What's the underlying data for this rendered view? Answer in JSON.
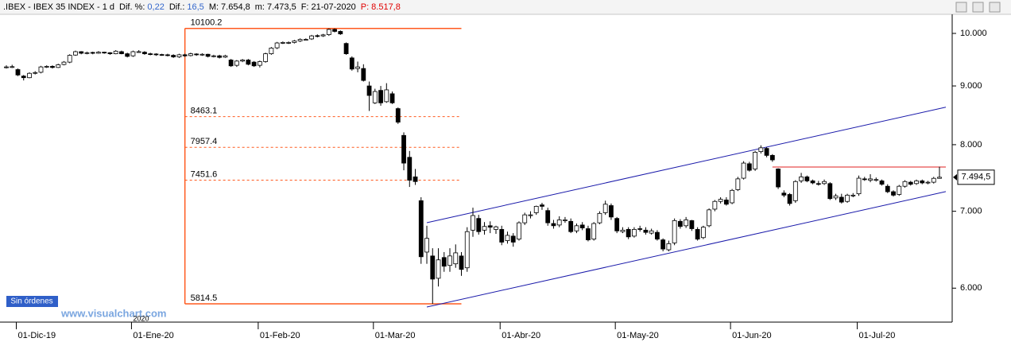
{
  "header": {
    "title": ".IBEX - IBEX 35 INDEX - 1 d",
    "fields": [
      {
        "label": "Dif. %:",
        "value": "0,22",
        "color": "#3366cc"
      },
      {
        "label": "Dif.:",
        "value": "16,5",
        "color": "#3366cc"
      },
      {
        "label": "M:",
        "value": "7.654,8",
        "color": "#000000"
      },
      {
        "label": "m:",
        "value": "7.473,5",
        "color": "#000000"
      },
      {
        "label": "F:",
        "value": "21-07-2020",
        "color": "#000000"
      },
      {
        "label": "P:",
        "value": "8.517,8",
        "color": "#e00000"
      }
    ]
  },
  "chart_data": {
    "type": "candlestick",
    "dates": [
      "2019-11-28",
      "2019-11-29",
      "2019-12-02",
      "2019-12-03",
      "2019-12-04",
      "2019-12-05",
      "2019-12-06",
      "2019-12-09",
      "2019-12-10",
      "2019-12-11",
      "2019-12-12",
      "2019-12-13",
      "2019-12-16",
      "2019-12-17",
      "2019-12-18",
      "2019-12-19",
      "2019-12-20",
      "2019-12-23",
      "2019-12-24",
      "2019-12-27",
      "2019-12-30",
      "2019-12-31",
      "2020-01-02",
      "2020-01-03",
      "2020-01-06",
      "2020-01-07",
      "2020-01-08",
      "2020-01-09",
      "2020-01-10",
      "2020-01-13",
      "2020-01-14",
      "2020-01-15",
      "2020-01-16",
      "2020-01-17",
      "2020-01-20",
      "2020-01-21",
      "2020-01-22",
      "2020-01-23",
      "2020-01-24",
      "2020-01-27",
      "2020-01-28",
      "2020-01-29",
      "2020-01-30",
      "2020-01-31",
      "2020-02-03",
      "2020-02-04",
      "2020-02-05",
      "2020-02-06",
      "2020-02-07",
      "2020-02-10",
      "2020-02-11",
      "2020-02-12",
      "2020-02-13",
      "2020-02-14",
      "2020-02-17",
      "2020-02-18",
      "2020-02-19",
      "2020-02-20",
      "2020-02-21",
      "2020-02-24",
      "2020-02-25",
      "2020-02-26",
      "2020-02-27",
      "2020-02-28",
      "2020-03-02",
      "2020-03-03",
      "2020-03-04",
      "2020-03-05",
      "2020-03-06",
      "2020-03-09",
      "2020-03-10",
      "2020-03-11",
      "2020-03-12",
      "2020-03-13",
      "2020-03-16",
      "2020-03-17",
      "2020-03-18",
      "2020-03-19",
      "2020-03-20",
      "2020-03-23",
      "2020-03-24",
      "2020-03-25",
      "2020-03-26",
      "2020-03-27",
      "2020-03-30",
      "2020-03-31",
      "2020-04-01",
      "2020-04-02",
      "2020-04-03",
      "2020-04-06",
      "2020-04-07",
      "2020-04-08",
      "2020-04-09",
      "2020-04-14",
      "2020-04-15",
      "2020-04-16",
      "2020-04-17",
      "2020-04-20",
      "2020-04-21",
      "2020-04-22",
      "2020-04-23",
      "2020-04-24",
      "2020-04-27",
      "2020-04-28",
      "2020-04-29",
      "2020-04-30",
      "2020-05-04",
      "2020-05-05",
      "2020-05-06",
      "2020-05-07",
      "2020-05-08",
      "2020-05-11",
      "2020-05-12",
      "2020-05-13",
      "2020-05-14",
      "2020-05-15",
      "2020-05-18",
      "2020-05-19",
      "2020-05-20",
      "2020-05-21",
      "2020-05-22",
      "2020-05-25",
      "2020-05-26",
      "2020-05-27",
      "2020-05-28",
      "2020-05-29",
      "2020-06-01",
      "2020-06-02",
      "2020-06-03",
      "2020-06-04",
      "2020-06-05",
      "2020-06-08",
      "2020-06-09",
      "2020-06-10",
      "2020-06-11",
      "2020-06-12",
      "2020-06-15",
      "2020-06-16",
      "2020-06-17",
      "2020-06-18",
      "2020-06-19",
      "2020-06-22",
      "2020-06-23",
      "2020-06-24",
      "2020-06-25",
      "2020-06-26",
      "2020-06-29",
      "2020-06-30",
      "2020-07-01",
      "2020-07-02",
      "2020-07-03",
      "2020-07-06",
      "2020-07-07",
      "2020-07-08",
      "2020-07-09",
      "2020-07-10",
      "2020-07-13",
      "2020-07-14",
      "2020-07-15",
      "2020-07-16",
      "2020-07-17",
      "2020-07-20",
      "2020-07-21"
    ],
    "open": [
      9340,
      9345,
      9300,
      9180,
      9150,
      9235,
      9250,
      9345,
      9360,
      9340,
      9395,
      9440,
      9575,
      9640,
      9605,
      9625,
      9610,
      9630,
      9620,
      9600,
      9640,
      9600,
      9560,
      9640,
      9630,
      9600,
      9595,
      9585,
      9580,
      9570,
      9540,
      9580,
      9565,
      9595,
      9580,
      9590,
      9550,
      9560,
      9535,
      9480,
      9380,
      9460,
      9480,
      9440,
      9380,
      9450,
      9600,
      9715,
      9815,
      9815,
      9820,
      9850,
      9880,
      9890,
      9955,
      9950,
      9975,
      10080,
      10040,
      9800,
      9520,
      9320,
      9320,
      9000,
      8700,
      8920,
      8720,
      8860,
      8600,
      8150,
      7800,
      7500,
      7150,
      6450,
      6400,
      6120,
      6380,
      6280,
      6300,
      6400,
      6250,
      6740,
      6900,
      6740,
      6800,
      6750,
      6750,
      6600,
      6660,
      6620,
      6840,
      6940,
      6980,
      7090,
      7010,
      6830,
      6810,
      6880,
      6860,
      6730,
      6810,
      6760,
      6620,
      6840,
      6980,
      7080,
      6900,
      6720,
      6750,
      6660,
      6760,
      6740,
      6700,
      6710,
      6610,
      6480,
      6570,
      6860,
      6800,
      6870,
      6750,
      6640,
      6800,
      7030,
      7140,
      7160,
      7120,
      7310,
      7480,
      7700,
      7620,
      7890,
      7940,
      7830,
      7620,
      7260,
      7240,
      7150,
      7440,
      7500,
      7440,
      7400,
      7400,
      7400,
      7190,
      7200,
      7140,
      7220,
      7250,
      7470,
      7450,
      7460,
      7440,
      7360,
      7280,
      7240,
      7360,
      7420,
      7400,
      7440,
      7415,
      7420,
      7478
    ],
    "high": [
      9380,
      9390,
      9320,
      9200,
      9250,
      9270,
      9370,
      9380,
      9380,
      9410,
      9460,
      9590,
      9660,
      9650,
      9640,
      9640,
      9650,
      9640,
      9630,
      9670,
      9660,
      9620,
      9660,
      9670,
      9650,
      9620,
      9610,
      9600,
      9600,
      9590,
      9600,
      9600,
      9620,
      9610,
      9610,
      9600,
      9580,
      9580,
      9580,
      9500,
      9480,
      9500,
      9500,
      9460,
      9470,
      9620,
      9730,
      9830,
      9840,
      9840,
      9870,
      9900,
      9900,
      9970,
      9980,
      9990,
      10100.2,
      10100,
      10060,
      9820,
      9550,
      9450,
      9400,
      9080,
      8950,
      9000,
      9050,
      8900,
      8620,
      8200,
      7900,
      7620,
      7200,
      6800,
      6500,
      6500,
      6450,
      6500,
      6550,
      6450,
      6780,
      7050,
      6950,
      6850,
      6860,
      6800,
      6800,
      6720,
      6700,
      6860,
      6980,
      7000,
      7080,
      7120,
      7050,
      6880,
      6930,
      6920,
      6900,
      6830,
      6850,
      6800,
      6850,
      7000,
      7150,
      7110,
      6920,
      6780,
      6780,
      6780,
      6800,
      6780,
      6760,
      6740,
      6630,
      6600,
      6900,
      6890,
      6920,
      6880,
      6780,
      6800,
      7040,
      7160,
      7200,
      7200,
      7320,
      7500,
      7740,
      7730,
      7900,
      7990,
      7960,
      7850,
      7630,
      7300,
      7260,
      7450,
      7560,
      7520,
      7460,
      7440,
      7460,
      7420,
      7250,
      7250,
      7250,
      7260,
      7520,
      7500,
      7540,
      7490,
      7460,
      7390,
      7300,
      7380,
      7450,
      7440,
      7460,
      7460,
      7440,
      7500,
      7654.8
    ],
    "low": [
      9320,
      9330,
      9180,
      9100,
      9140,
      9210,
      9230,
      9330,
      9320,
      9330,
      9380,
      9420,
      9560,
      9590,
      9590,
      9590,
      9600,
      9600,
      9580,
      9590,
      9590,
      9530,
      9540,
      9620,
      9580,
      9570,
      9560,
      9560,
      9550,
      9520,
      9520,
      9540,
      9550,
      9560,
      9560,
      9530,
      9530,
      9510,
      9520,
      9350,
      9350,
      9440,
      9380,
      9350,
      9340,
      9430,
      9580,
      9690,
      9790,
      9790,
      9800,
      9830,
      9860,
      9870,
      9920,
      9930,
      9950,
      10020,
      9970,
      9580,
      9280,
      9250,
      9080,
      8560,
      8680,
      8650,
      8700,
      8680,
      8340,
      7600,
      7350,
      7380,
      6300,
      6300,
      5814.5,
      6020,
      6200,
      6200,
      6250,
      6150,
      6200,
      6650,
      6680,
      6680,
      6700,
      6690,
      6540,
      6560,
      6520,
      6600,
      6810,
      6900,
      6950,
      7020,
      6800,
      6760,
      6780,
      6840,
      6700,
      6700,
      6740,
      6590,
      6600,
      6820,
      6950,
      6880,
      6700,
      6700,
      6620,
      6640,
      6720,
      6680,
      6680,
      6600,
      6460,
      6460,
      6540,
      6760,
      6770,
      6730,
      6600,
      6620,
      6780,
      7000,
      7110,
      7080,
      7100,
      7290,
      7460,
      7580,
      7590,
      7860,
      7800,
      7730,
      7320,
      7200,
      7080,
      7120,
      7410,
      7420,
      7390,
      7370,
      7380,
      7160,
      7160,
      7110,
      7120,
      7200,
      7220,
      7440,
      7420,
      7430,
      7370,
      7260,
      7210,
      7220,
      7340,
      7370,
      7380,
      7390,
      7390,
      7400,
      7473.5
    ],
    "close": [
      9350,
      9355,
      9200,
      9150,
      9230,
      9245,
      9350,
      9360,
      9340,
      9390,
      9440,
      9570,
      9640,
      9610,
      9620,
      9610,
      9630,
      9620,
      9600,
      9650,
      9600,
      9550,
      9640,
      9640,
      9600,
      9590,
      9580,
      9580,
      9570,
      9540,
      9580,
      9560,
      9600,
      9580,
      9590,
      9550,
      9560,
      9530,
      9560,
      9370,
      9460,
      9480,
      9400,
      9370,
      9450,
      9600,
      9710,
      9810,
      9820,
      9820,
      9850,
      9880,
      9880,
      9950,
      9950,
      9970,
      10080,
      10040,
      9990,
      9600,
      9310,
      9350,
      9100,
      8830,
      8900,
      8700,
      8930,
      8700,
      8370,
      7710,
      7450,
      7430,
      6390,
      6630,
      6110,
      6350,
      6270,
      6400,
      6440,
      6230,
      6720,
      6940,
      6720,
      6790,
      6780,
      6785,
      6580,
      6670,
      6580,
      6840,
      6950,
      6950,
      7070,
      7070,
      6840,
      6800,
      6880,
      6880,
      6720,
      6800,
      6770,
      6610,
      6830,
      6970,
      7100,
      6920,
      6730,
      6740,
      6650,
      6750,
      6750,
      6710,
      6730,
      6620,
      6490,
      6560,
      6870,
      6790,
      6880,
      6760,
      6620,
      6780,
      7020,
      7140,
      7170,
      7100,
      7300,
      7470,
      7710,
      7600,
      7880,
      7950,
      7830,
      7760,
      7350,
      7230,
      7110,
      7430,
      7500,
      7440,
      7410,
      7390,
      7430,
      7180,
      7220,
      7130,
      7230,
      7230,
      7480,
      7460,
      7470,
      7460,
      7390,
      7280,
      7230,
      7360,
      7430,
      7390,
      7440,
      7410,
      7420,
      7478,
      7494.5
    ],
    "up_color": "#ffffff",
    "down_color": "#000000",
    "log_scale": true,
    "ylim": [
      5605,
      10390
    ],
    "yticks": [
      {
        "value": 6000,
        "label": "6.000"
      },
      {
        "value": 7000,
        "label": "7.000"
      },
      {
        "value": 8000,
        "label": "8.000"
      },
      {
        "value": 9000,
        "label": "9.000"
      },
      {
        "value": 10000,
        "label": "10.000"
      }
    ],
    "xticks": [
      {
        "value": "2019-12-01",
        "label": "01-Dic-19"
      },
      {
        "value": "2020-01-01",
        "label": "01-Ene-20"
      },
      {
        "value": "2020-02-01",
        "label": "01-Feb-20"
      },
      {
        "value": "2020-03-01",
        "label": "01-Mar-20"
      },
      {
        "value": "2020-04-01",
        "label": "01-Abr-20"
      },
      {
        "value": "2020-05-01",
        "label": "01-May-20"
      },
      {
        "value": "2020-06-01",
        "label": "01-Jun-20"
      },
      {
        "value": "2020-07-01",
        "label": "01-Jul-20"
      }
    ],
    "year_label": "2020",
    "fib_levels": [
      10100.2,
      8463.1,
      7957.4,
      7451.6,
      5814.5
    ],
    "fib_range": [
      "2020-01-15",
      "2020-03-23"
    ],
    "fib_color": "#ff5a1f",
    "trend_lines": [
      {
        "color": "#1a1aaa",
        "x": [
          "2020-03-13",
          "2020-07-21"
        ],
        "y": [
          6842,
          8600
        ]
      },
      {
        "color": "#1a1aaa",
        "x": [
          "2020-03-13",
          "2020-07-21"
        ],
        "y": [
          5777,
          7261
        ]
      },
      {
        "color": "#e02020",
        "x": [
          "2020-06-10",
          "2020-07-21"
        ],
        "y": [
          7650,
          7650
        ]
      }
    ],
    "last_price": {
      "value": 7494.5,
      "label": "7.494,5"
    },
    "status": "Sin órdenes",
    "watermark": "www.visualchart.com"
  }
}
